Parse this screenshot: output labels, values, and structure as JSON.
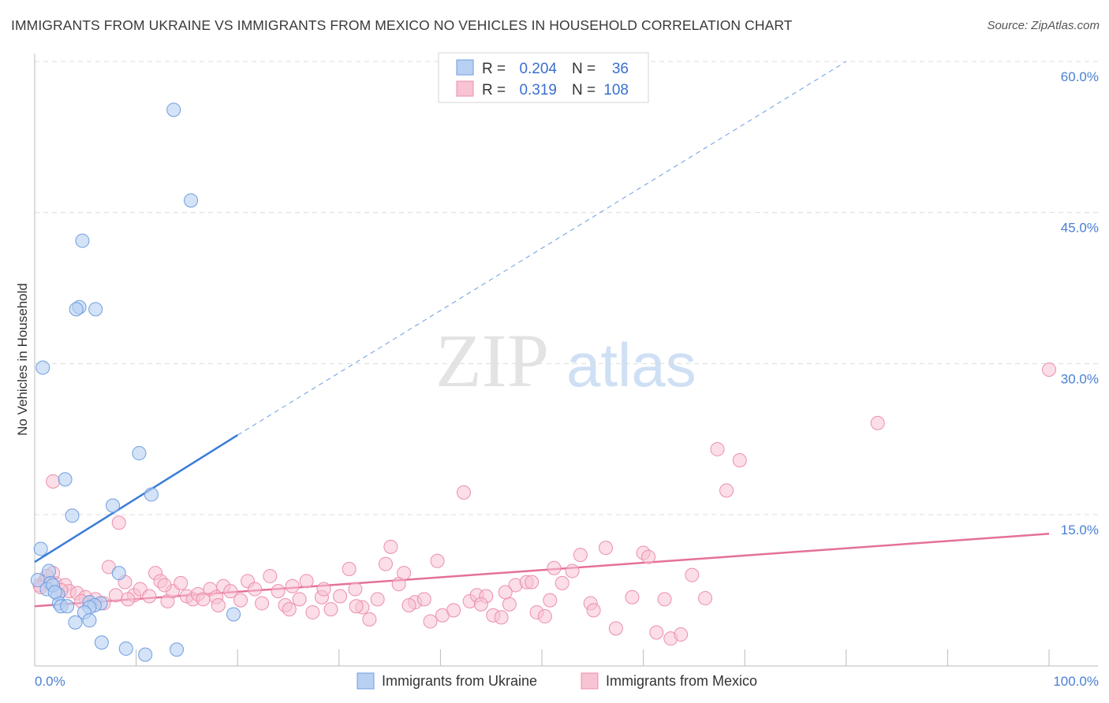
{
  "header": {
    "title": "IMMIGRANTS FROM UKRAINE VS IMMIGRANTS FROM MEXICO NO VEHICLES IN HOUSEHOLD CORRELATION CHART",
    "source": "Source: ZipAtlas.com"
  },
  "watermark": {
    "zip": "ZIP",
    "atlas": "atlas"
  },
  "colors": {
    "ukraine_fill": "#b8d0f2",
    "ukraine_stroke": "#6e9ee0",
    "ukraine_line": "#3b7dd8",
    "mexico_fill": "#f8c3d3",
    "mexico_stroke": "#ec8fab",
    "mexico_line": "#e5709a",
    "tick_text": "#4a7fd4"
  },
  "legend": {
    "r_label": "R =",
    "n_label": "N =",
    "rows": [
      {
        "series": "Immigrants from Ukraine",
        "r": "0.204",
        "n": "36"
      },
      {
        "series": "Immigrants from Mexico",
        "r": "0.319",
        "n": "108"
      }
    ]
  },
  "chart_data": {
    "type": "scatter",
    "title": "IMMIGRANTS FROM UKRAINE VS IMMIGRANTS FROM MEXICO NO VEHICLES IN HOUSEHOLD CORRELATION CHART",
    "xlabel": "",
    "ylabel": "No Vehicles in Household",
    "xlim": [
      0,
      100
    ],
    "ylim": [
      0,
      60
    ],
    "x_tick_labels": [
      "0.0%",
      "100.0%"
    ],
    "y_ticks": [
      15,
      30,
      45,
      60
    ],
    "y_tick_labels": [
      "15.0%",
      "30.0%",
      "45.0%",
      "60.0%"
    ],
    "grid": true,
    "legend_position": "top-center",
    "series": [
      {
        "name": "Immigrants from Ukraine",
        "trend": {
          "x": [
            0,
            20
          ],
          "y": [
            10.3,
            22.9
          ],
          "dashed_extension_to": [
            80,
            60
          ]
        },
        "points": [
          [
            13.7,
            55.2
          ],
          [
            15.4,
            46.2
          ],
          [
            4.7,
            42.2
          ],
          [
            4.4,
            35.6
          ],
          [
            4.1,
            35.4
          ],
          [
            6.0,
            35.4
          ],
          [
            0.8,
            29.6
          ],
          [
            10.3,
            21.1
          ],
          [
            3.0,
            18.5
          ],
          [
            11.5,
            17.0
          ],
          [
            7.7,
            15.9
          ],
          [
            3.7,
            14.9
          ],
          [
            0.6,
            11.6
          ],
          [
            8.3,
            9.2
          ],
          [
            1.4,
            9.4
          ],
          [
            0.3,
            8.5
          ],
          [
            1.6,
            8.2
          ],
          [
            1.2,
            7.6
          ],
          [
            2.3,
            7.1
          ],
          [
            2.4,
            6.2
          ],
          [
            2.6,
            5.9
          ],
          [
            3.2,
            5.9
          ],
          [
            5.4,
            6.3
          ],
          [
            6.5,
            6.2
          ],
          [
            5.9,
            6.0
          ],
          [
            5.4,
            5.8
          ],
          [
            4.9,
            5.3
          ],
          [
            19.6,
            5.1
          ],
          [
            5.4,
            4.5
          ],
          [
            4.0,
            4.3
          ],
          [
            6.6,
            2.3
          ],
          [
            9.0,
            1.7
          ],
          [
            14.0,
            1.6
          ],
          [
            10.9,
            1.1
          ],
          [
            1.8,
            8.0
          ],
          [
            2.0,
            7.3
          ]
        ]
      },
      {
        "name": "Immigrants from Mexico",
        "trend": {
          "x": [
            0,
            100
          ],
          "y": [
            5.9,
            13.1
          ]
        },
        "points": [
          [
            1.8,
            18.3
          ],
          [
            8.3,
            14.2
          ],
          [
            2.0,
            8.2
          ],
          [
            0.5,
            8.0
          ],
          [
            1.0,
            8.4
          ],
          [
            1.8,
            9.2
          ],
          [
            3.0,
            8.0
          ],
          [
            3.4,
            7.4
          ],
          [
            4.2,
            7.2
          ],
          [
            5.0,
            6.8
          ],
          [
            6.0,
            6.6
          ],
          [
            6.8,
            6.2
          ],
          [
            7.3,
            9.8
          ],
          [
            8.0,
            7.0
          ],
          [
            8.9,
            8.3
          ],
          [
            9.8,
            7.0
          ],
          [
            10.4,
            7.6
          ],
          [
            11.3,
            6.9
          ],
          [
            11.9,
            9.2
          ],
          [
            12.4,
            8.4
          ],
          [
            13.1,
            6.4
          ],
          [
            13.6,
            7.4
          ],
          [
            14.4,
            8.2
          ],
          [
            15.0,
            6.9
          ],
          [
            15.6,
            6.6
          ],
          [
            16.1,
            7.1
          ],
          [
            16.6,
            6.6
          ],
          [
            17.3,
            7.6
          ],
          [
            17.9,
            6.8
          ],
          [
            18.6,
            7.9
          ],
          [
            19.3,
            7.4
          ],
          [
            20.3,
            6.5
          ],
          [
            21.0,
            8.4
          ],
          [
            21.7,
            7.6
          ],
          [
            22.4,
            6.2
          ],
          [
            23.2,
            8.9
          ],
          [
            24.0,
            7.4
          ],
          [
            24.7,
            6.0
          ],
          [
            25.4,
            7.9
          ],
          [
            26.1,
            6.6
          ],
          [
            26.8,
            8.4
          ],
          [
            27.4,
            5.3
          ],
          [
            28.3,
            6.8
          ],
          [
            29.2,
            5.6
          ],
          [
            30.1,
            6.9
          ],
          [
            31.0,
            9.6
          ],
          [
            31.6,
            7.6
          ],
          [
            32.3,
            5.8
          ],
          [
            33.0,
            4.6
          ],
          [
            33.8,
            6.6
          ],
          [
            34.6,
            10.1
          ],
          [
            35.1,
            11.8
          ],
          [
            35.9,
            8.1
          ],
          [
            36.4,
            9.2
          ],
          [
            37.5,
            6.3
          ],
          [
            38.4,
            6.6
          ],
          [
            39.0,
            4.4
          ],
          [
            39.7,
            10.4
          ],
          [
            40.2,
            5.0
          ],
          [
            41.3,
            5.5
          ],
          [
            42.3,
            17.2
          ],
          [
            42.9,
            6.4
          ],
          [
            43.6,
            7.0
          ],
          [
            44.5,
            6.9
          ],
          [
            45.2,
            5.0
          ],
          [
            46.0,
            4.8
          ],
          [
            46.8,
            6.1
          ],
          [
            47.4,
            8.0
          ],
          [
            48.5,
            8.3
          ],
          [
            49.5,
            5.3
          ],
          [
            50.3,
            4.9
          ],
          [
            51.2,
            9.7
          ],
          [
            52.0,
            8.2
          ],
          [
            53.0,
            9.4
          ],
          [
            53.8,
            11.0
          ],
          [
            54.8,
            6.2
          ],
          [
            56.3,
            11.7
          ],
          [
            57.3,
            3.7
          ],
          [
            58.9,
            6.8
          ],
          [
            60.0,
            11.2
          ],
          [
            60.5,
            10.8
          ],
          [
            61.3,
            3.3
          ],
          [
            62.1,
            6.6
          ],
          [
            64.8,
            9.0
          ],
          [
            66.1,
            6.7
          ],
          [
            67.3,
            21.5
          ],
          [
            68.2,
            17.4
          ],
          [
            69.5,
            20.4
          ],
          [
            83.1,
            24.1
          ],
          [
            100.0,
            29.4
          ],
          [
            0.6,
            7.8
          ],
          [
            1.2,
            8.9
          ],
          [
            2.6,
            7.5
          ],
          [
            4.6,
            6.4
          ],
          [
            9.2,
            6.6
          ],
          [
            12.8,
            8.0
          ],
          [
            18.1,
            6.0
          ],
          [
            25.1,
            5.6
          ],
          [
            31.7,
            5.9
          ],
          [
            36.9,
            6.0
          ],
          [
            44.0,
            6.1
          ],
          [
            50.8,
            6.5
          ],
          [
            55.1,
            5.5
          ],
          [
            46.4,
            7.3
          ],
          [
            62.7,
            2.7
          ],
          [
            63.7,
            3.1
          ],
          [
            49.0,
            8.3
          ],
          [
            28.5,
            7.6
          ]
        ]
      }
    ]
  }
}
